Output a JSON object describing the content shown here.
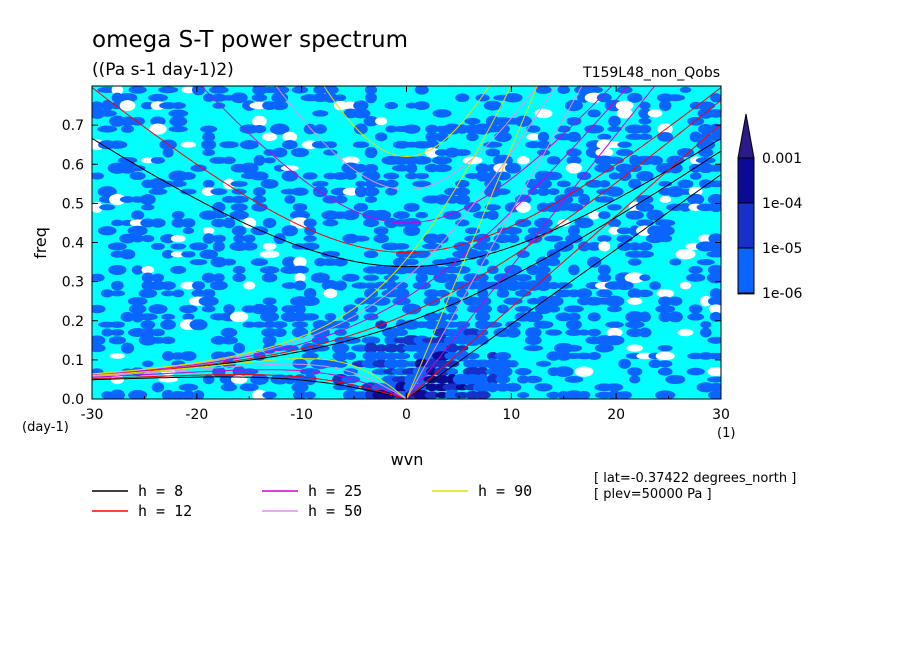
{
  "chart_data": {
    "type": "heatmap",
    "title": "omega S-T power spectrum",
    "subtitle": "((Pa s-1 day-1)2)",
    "run_label": "T159L48_non_Qobs",
    "xlabel": "wvn",
    "ylabel": "freq",
    "x_unit": "(1)",
    "y_unit": "(day-1)",
    "xlim": [
      -30,
      30
    ],
    "ylim": [
      0,
      0.8
    ],
    "x_ticks": [
      -30,
      -20,
      -10,
      0,
      10,
      20,
      30
    ],
    "y_ticks": [
      0.0,
      0.1,
      0.2,
      0.3,
      0.4,
      0.5,
      0.6,
      0.7
    ],
    "x_tick_labels": [
      "-30",
      "-20",
      "-10",
      "0",
      "10",
      "20",
      "30"
    ],
    "y_tick_labels": [
      "0.0",
      "0.1",
      "0.2",
      "0.3",
      "0.4",
      "0.5",
      "0.6",
      "0.7"
    ],
    "colorbar": {
      "levels": [
        "1e-06",
        "1e-05",
        "1e-04",
        "0.001"
      ],
      "colors": [
        "#ffffff",
        "#00ffff",
        "#0a64ff",
        "#1630c8",
        "#0a0a96",
        "#2a1a8c"
      ]
    },
    "info_lines": [
      "[ lat=-0.37422 degrees_north ]",
      "[ plev=50000 Pa ]"
    ],
    "dispersion_curves": [
      {
        "name": "h =  8",
        "h": 8,
        "color": "#000000"
      },
      {
        "name": "h = 12",
        "h": 12,
        "color": "#ff0000"
      },
      {
        "name": "h = 25",
        "h": 25,
        "color": "#d000d0"
      },
      {
        "name": "h = 50",
        "h": 50,
        "color": "#e090e8"
      },
      {
        "name": "h = 90",
        "h": 90,
        "color": "#e0e000"
      }
    ]
  }
}
